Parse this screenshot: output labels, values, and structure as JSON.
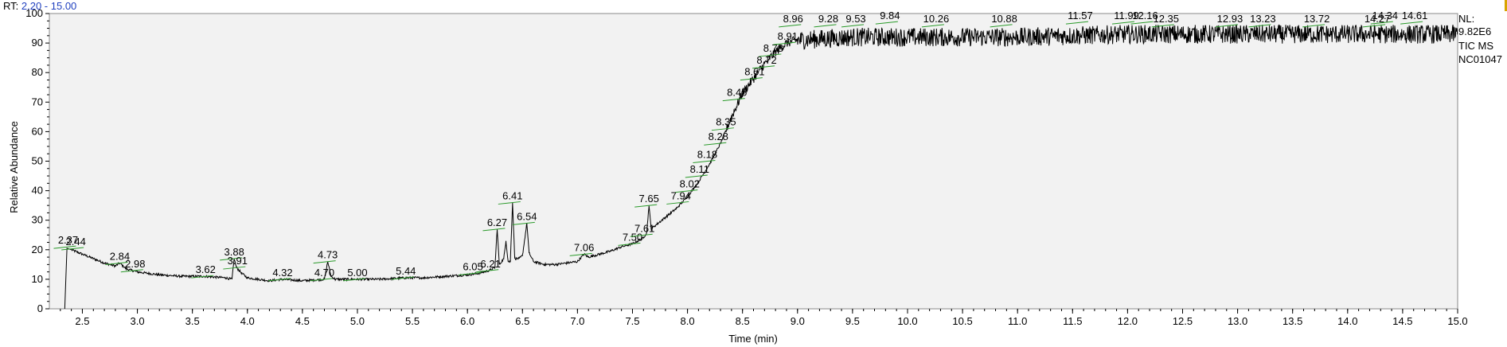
{
  "header": {
    "rt_prefix": "RT:",
    "rt_range": "2.20 - 15.00"
  },
  "info": [
    "NL:",
    "9.82E6",
    "TIC  MS",
    "NC01047"
  ],
  "colors": {
    "plot_bg": "#f2f2f2",
    "trace": "#000000",
    "baseline_marks": "#2a9a2a",
    "rt_value": "#1f3fbf"
  },
  "chart_data": {
    "type": "line",
    "xlabel": "Time (min)",
    "ylabel": "Relative Abundance",
    "xlim": [
      2.2,
      15.0
    ],
    "ylim": [
      0,
      100
    ],
    "x_ticks": [
      "2.5",
      "3.0",
      "3.5",
      "4.0",
      "4.5",
      "5.0",
      "5.5",
      "6.0",
      "6.5",
      "7.0",
      "7.5",
      "8.0",
      "8.5",
      "9.0",
      "9.5",
      "10.0",
      "10.5",
      "11.0",
      "11.5",
      "12.0",
      "12.5",
      "13.0",
      "13.5",
      "14.0",
      "14.5",
      "15.0"
    ],
    "y_ticks": [
      "0",
      "10",
      "20",
      "30",
      "40",
      "50",
      "60",
      "70",
      "80",
      "90",
      "100"
    ],
    "trace_points": [
      [
        2.34,
        0
      ],
      [
        2.36,
        20.5
      ],
      [
        2.4,
        20
      ],
      [
        2.5,
        18.5
      ],
      [
        2.6,
        17
      ],
      [
        2.7,
        15.5
      ],
      [
        2.8,
        14.5
      ],
      [
        2.84,
        15.5
      ],
      [
        2.9,
        13.5
      ],
      [
        3.0,
        12.5
      ],
      [
        3.2,
        11.5
      ],
      [
        3.4,
        11
      ],
      [
        3.6,
        11
      ],
      [
        3.8,
        10.5
      ],
      [
        3.86,
        10
      ],
      [
        3.88,
        17
      ],
      [
        3.9,
        14
      ],
      [
        3.95,
        12
      ],
      [
        4.0,
        10.5
      ],
      [
        4.2,
        9.5
      ],
      [
        4.32,
        10
      ],
      [
        4.5,
        9.5
      ],
      [
        4.7,
        10
      ],
      [
        4.73,
        16
      ],
      [
        4.76,
        11
      ],
      [
        4.8,
        10
      ],
      [
        5.0,
        10
      ],
      [
        5.2,
        10
      ],
      [
        5.44,
        10.5
      ],
      [
        5.6,
        10.5
      ],
      [
        5.8,
        11
      ],
      [
        6.0,
        11.5
      ],
      [
        6.1,
        12
      ],
      [
        6.2,
        13
      ],
      [
        6.25,
        14
      ],
      [
        6.27,
        27
      ],
      [
        6.29,
        15
      ],
      [
        6.33,
        17
      ],
      [
        6.35,
        23
      ],
      [
        6.37,
        16
      ],
      [
        6.39,
        16
      ],
      [
        6.41,
        36
      ],
      [
        6.43,
        17
      ],
      [
        6.47,
        17
      ],
      [
        6.5,
        18
      ],
      [
        6.54,
        29
      ],
      [
        6.56,
        19
      ],
      [
        6.6,
        16
      ],
      [
        6.7,
        15
      ],
      [
        6.8,
        15
      ],
      [
        6.9,
        15.5
      ],
      [
        7.0,
        16
      ],
      [
        7.06,
        18.5
      ],
      [
        7.1,
        17.5
      ],
      [
        7.2,
        18.5
      ],
      [
        7.3,
        19.5
      ],
      [
        7.4,
        21
      ],
      [
        7.5,
        22
      ],
      [
        7.6,
        24
      ],
      [
        7.63,
        26
      ],
      [
        7.65,
        35
      ],
      [
        7.67,
        27
      ],
      [
        7.7,
        28
      ],
      [
        7.8,
        31
      ],
      [
        7.9,
        34
      ],
      [
        8.0,
        38
      ],
      [
        8.1,
        43
      ],
      [
        8.2,
        49
      ],
      [
        8.3,
        56
      ],
      [
        8.4,
        65
      ],
      [
        8.5,
        73
      ],
      [
        8.6,
        78
      ],
      [
        8.7,
        83
      ],
      [
        8.8,
        87
      ],
      [
        8.9,
        90
      ],
      [
        9.0,
        91
      ],
      [
        9.5,
        92
      ],
      [
        10.0,
        92
      ],
      [
        11.0,
        92
      ],
      [
        12.0,
        93
      ],
      [
        13.0,
        93
      ],
      [
        14.0,
        93
      ],
      [
        15.0,
        93
      ]
    ],
    "noise_start": 8.35,
    "peaks": [
      {
        "label": "2.37",
        "x": 2.37,
        "y": 21
      },
      {
        "label": "2.44",
        "x": 2.44,
        "y": 20.5
      },
      {
        "label": "2.84",
        "x": 2.84,
        "y": 15.5
      },
      {
        "label": "2.98",
        "x": 2.98,
        "y": 13
      },
      {
        "label": "3.62",
        "x": 3.62,
        "y": 11
      },
      {
        "label": "3.88",
        "x": 3.88,
        "y": 17
      },
      {
        "label": "3.91",
        "x": 3.91,
        "y": 14
      },
      {
        "label": "4.32",
        "x": 4.32,
        "y": 10
      },
      {
        "label": "4.70",
        "x": 4.7,
        "y": 10
      },
      {
        "label": "4.73",
        "x": 4.73,
        "y": 16
      },
      {
        "label": "5.00",
        "x": 5.0,
        "y": 10
      },
      {
        "label": "5.44",
        "x": 5.44,
        "y": 10.5
      },
      {
        "label": "6.05",
        "x": 6.05,
        "y": 12
      },
      {
        "label": "6.21",
        "x": 6.21,
        "y": 13
      },
      {
        "label": "6.27",
        "x": 6.27,
        "y": 27
      },
      {
        "label": "6.41",
        "x": 6.41,
        "y": 36
      },
      {
        "label": "6.54",
        "x": 6.54,
        "y": 29
      },
      {
        "label": "7.06",
        "x": 7.06,
        "y": 18.5
      },
      {
        "label": "7.50",
        "x": 7.5,
        "y": 22
      },
      {
        "label": "7.61",
        "x": 7.61,
        "y": 25
      },
      {
        "label": "7.65",
        "x": 7.65,
        "y": 35
      },
      {
        "label": "7.94",
        "x": 7.94,
        "y": 36
      },
      {
        "label": "8.02",
        "x": 8.02,
        "y": 40
      },
      {
        "label": "8.11",
        "x": 8.11,
        "y": 45
      },
      {
        "label": "8.18",
        "x": 8.18,
        "y": 50
      },
      {
        "label": "8.28",
        "x": 8.28,
        "y": 56
      },
      {
        "label": "8.35",
        "x": 8.35,
        "y": 61
      },
      {
        "label": "8.45",
        "x": 8.45,
        "y": 71
      },
      {
        "label": "8.61",
        "x": 8.61,
        "y": 78
      },
      {
        "label": "8.72",
        "x": 8.72,
        "y": 82
      },
      {
        "label": "8.78",
        "x": 8.78,
        "y": 86
      },
      {
        "label": "8.91",
        "x": 8.91,
        "y": 90
      },
      {
        "label": "8.96",
        "x": 8.96,
        "y": 96
      },
      {
        "label": "9.28",
        "x": 9.28,
        "y": 96
      },
      {
        "label": "9.53",
        "x": 9.53,
        "y": 96
      },
      {
        "label": "9.84",
        "x": 9.84,
        "y": 97
      },
      {
        "label": "10.26",
        "x": 10.26,
        "y": 96
      },
      {
        "label": "10.88",
        "x": 10.88,
        "y": 96
      },
      {
        "label": "11.57",
        "x": 11.57,
        "y": 97
      },
      {
        "label": "11.99",
        "x": 11.99,
        "y": 97
      },
      {
        "label": "12.16",
        "x": 12.16,
        "y": 97
      },
      {
        "label": "12.35",
        "x": 12.35,
        "y": 96
      },
      {
        "label": "12.93",
        "x": 12.93,
        "y": 96
      },
      {
        "label": "13.23",
        "x": 13.23,
        "y": 96
      },
      {
        "label": "13.72",
        "x": 13.72,
        "y": 96
      },
      {
        "label": "14.27",
        "x": 14.27,
        "y": 96
      },
      {
        "label": "14.34",
        "x": 14.34,
        "y": 97
      },
      {
        "label": "14.61",
        "x": 14.61,
        "y": 97
      }
    ]
  }
}
